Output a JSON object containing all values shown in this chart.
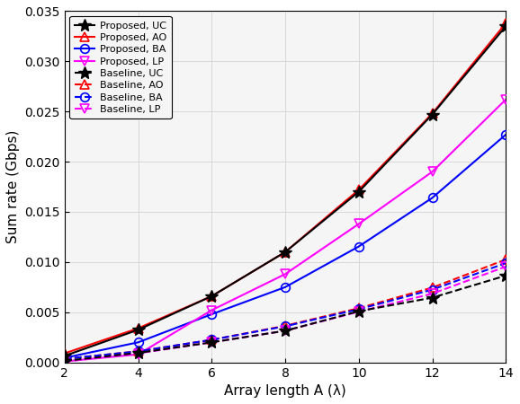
{
  "x": [
    2,
    4,
    6,
    8,
    10,
    12,
    14
  ],
  "proposed_UC": [
    0.00065,
    0.00325,
    0.0066,
    0.011,
    0.017,
    0.0247,
    0.0335
  ],
  "proposed_AO": [
    0.0009,
    0.0034,
    0.0066,
    0.011,
    0.0172,
    0.0248,
    0.0338
  ],
  "proposed_BA": [
    0.00045,
    0.002,
    0.0048,
    0.0075,
    0.01155,
    0.0164,
    0.0227
  ],
  "proposed_LP": [
    0.0001,
    0.0008,
    0.0052,
    0.0088,
    0.0138,
    0.019,
    0.0262
  ],
  "baseline_UC": [
    0.00015,
    0.00095,
    0.002,
    0.00315,
    0.0051,
    0.00645,
    0.00865
  ],
  "baseline_AO": [
    0.00035,
    0.0011,
    0.00225,
    0.00365,
    0.0054,
    0.00745,
    0.01025
  ],
  "baseline_BA": [
    0.00035,
    0.0011,
    0.00225,
    0.0036,
    0.0053,
    0.00725,
    0.0099
  ],
  "baseline_LP": [
    8e-05,
    0.0009,
    0.002,
    0.00315,
    0.00505,
    0.00685,
    0.00955
  ],
  "xlabel": "Array length A (λ)",
  "ylabel": "Sum rate (Gbps)",
  "ylim": [
    0,
    0.035
  ],
  "xlim": [
    2,
    14
  ],
  "yticks": [
    0,
    0.005,
    0.01,
    0.015,
    0.02,
    0.025,
    0.03,
    0.035
  ],
  "xticks": [
    2,
    4,
    6,
    8,
    10,
    12,
    14
  ],
  "color_black": "#000000",
  "color_red": "#FF0000",
  "color_blue": "#0000FF",
  "color_magenta": "#FF00FF"
}
